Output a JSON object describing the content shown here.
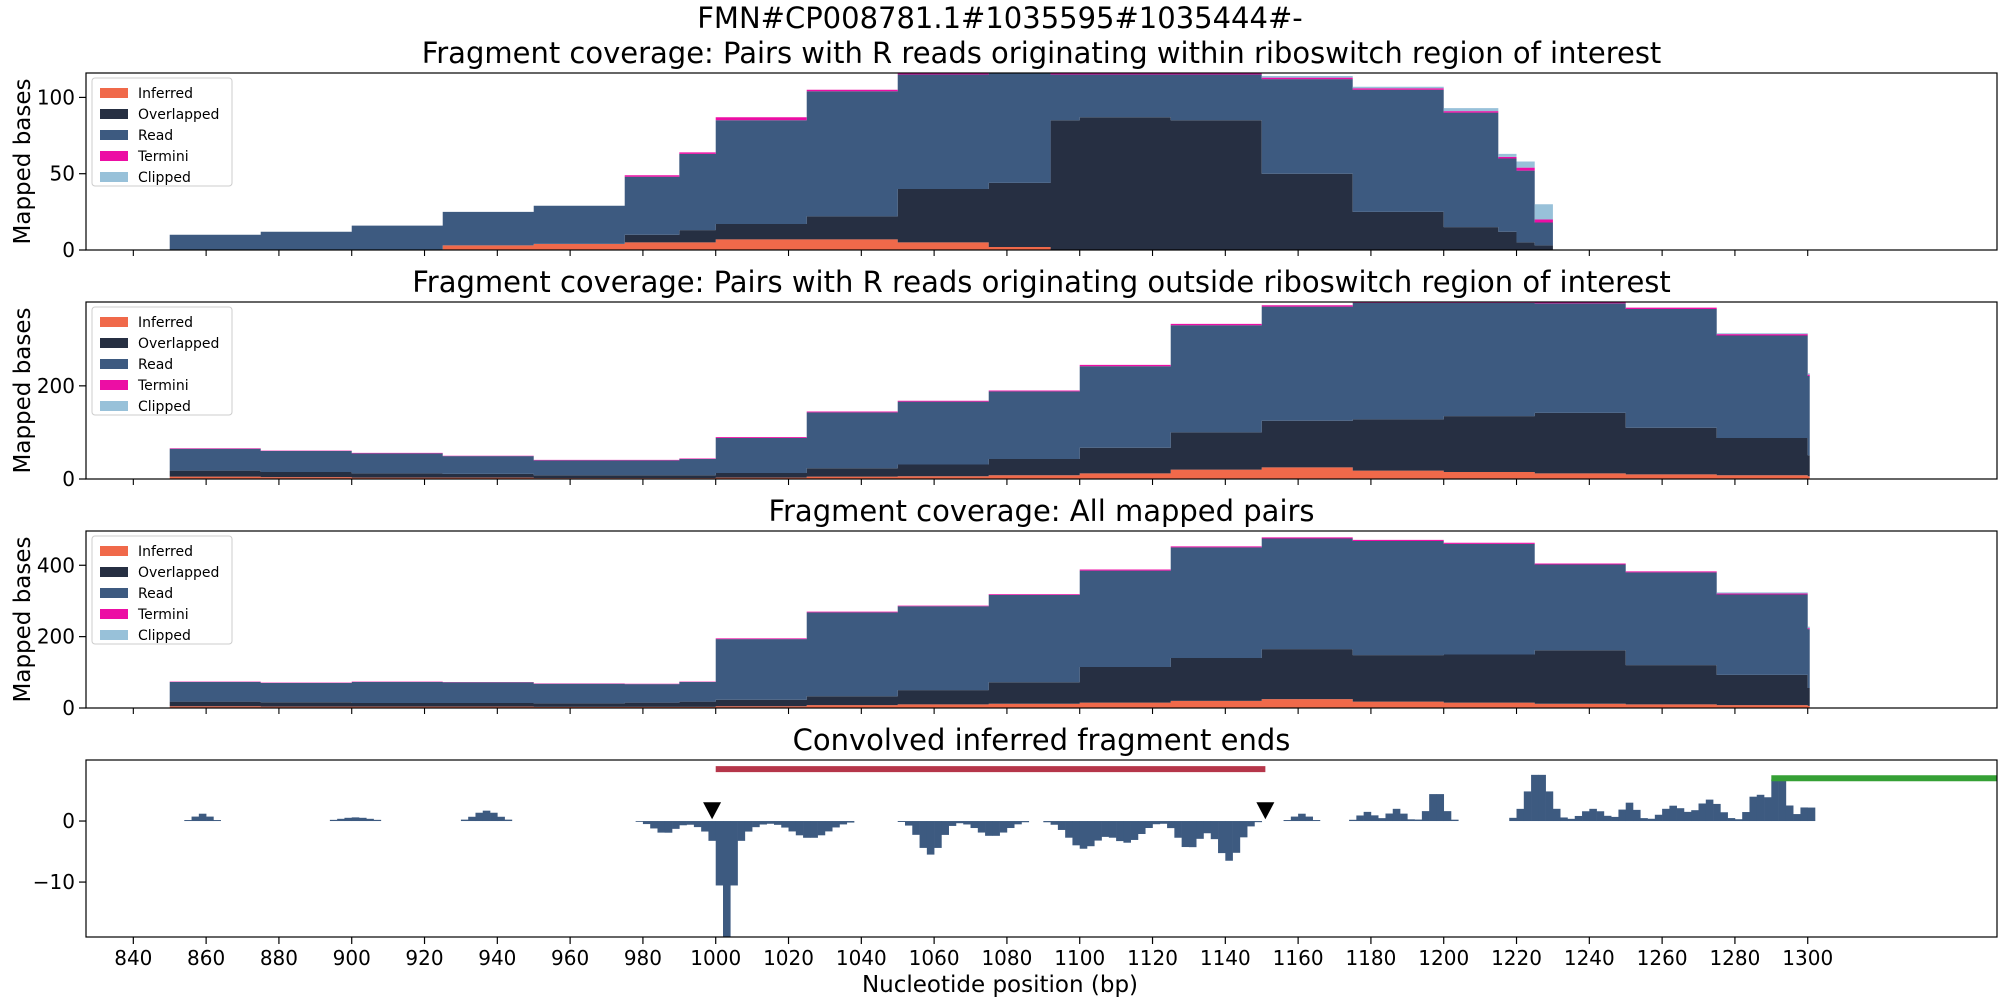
{
  "figure": {
    "title": "FMN#CP008781.1#1035595#1035444#-",
    "xlabel": "Nucleotide position (bp)"
  },
  "colors": {
    "inferred": "#f0694a",
    "overlapped": "#262f42",
    "read": "#3d5a80",
    "termini": "#ec0ea4",
    "clipped": "#98c1d9",
    "region_bar": "#b5364a",
    "green_bar": "#35a035",
    "marker": "#000000"
  },
  "legend": [
    "Inferred",
    "Overlapped",
    "Read",
    "Termini",
    "Clipped"
  ],
  "chart_data": [
    {
      "type": "area",
      "title": "Fragment coverage: Pairs with R reads originating within riboswitch region of interest",
      "xlabel": "",
      "ylabel": "Mapped bases",
      "xlim": [
        827,
        1352
      ],
      "ylim": [
        0,
        116
      ],
      "yticks": [
        0,
        50,
        100
      ],
      "legend_position": "upper-left",
      "stacked": true,
      "x": [
        850,
        875,
        900,
        925,
        950,
        975,
        990,
        1000,
        1025,
        1050,
        1075,
        1092,
        1100,
        1125,
        1150,
        1175,
        1200,
        1215,
        1220,
        1225,
        1230
      ],
      "series": [
        {
          "name": "Inferred",
          "values": [
            0,
            0,
            0,
            3,
            4,
            5,
            5,
            7,
            7,
            5,
            2,
            0,
            0,
            0,
            0,
            0,
            0,
            0,
            0,
            0,
            0
          ]
        },
        {
          "name": "Overlapped",
          "values": [
            0,
            0,
            0,
            0,
            0,
            5,
            8,
            10,
            15,
            35,
            42,
            85,
            87,
            85,
            50,
            25,
            15,
            12,
            5,
            3,
            0
          ]
        },
        {
          "name": "Read",
          "values": [
            10,
            12,
            16,
            22,
            25,
            38,
            50,
            68,
            82,
            75,
            74,
            30,
            28,
            30,
            62,
            80,
            75,
            48,
            47,
            15,
            0
          ]
        },
        {
          "name": "Termini",
          "values": [
            0,
            0,
            0,
            0,
            0,
            1,
            1,
            2,
            1,
            1,
            1,
            1,
            1,
            1,
            1,
            1,
            1,
            1,
            2,
            2,
            0
          ]
        },
        {
          "name": "Clipped",
          "values": [
            0,
            0,
            0,
            0,
            0,
            0,
            0,
            0,
            0,
            0,
            0,
            0,
            0,
            0,
            1,
            1,
            2,
            2,
            4,
            10,
            0
          ]
        }
      ]
    },
    {
      "type": "area",
      "title": "Fragment coverage: Pairs with R reads originating outside riboswitch region of interest",
      "xlabel": "",
      "ylabel": "Mapped bases",
      "xlim": [
        827,
        1352
      ],
      "ylim": [
        0,
        380
      ],
      "yticks": [
        0,
        200
      ],
      "legend_position": "upper-left",
      "stacked": true,
      "x": [
        850,
        875,
        900,
        925,
        950,
        975,
        990,
        1000,
        1025,
        1050,
        1075,
        1100,
        1125,
        1150,
        1175,
        1200,
        1225,
        1250,
        1275,
        1300
      ],
      "series": [
        {
          "name": "Inferred",
          "values": [
            5,
            4,
            3,
            3,
            2,
            2,
            2,
            3,
            5,
            6,
            8,
            12,
            20,
            25,
            18,
            15,
            12,
            10,
            8,
            6
          ]
        },
        {
          "name": "Overlapped",
          "values": [
            13,
            11,
            9,
            8,
            6,
            6,
            6,
            10,
            18,
            25,
            35,
            55,
            80,
            100,
            110,
            120,
            130,
            100,
            80,
            45
          ]
        },
        {
          "name": "Read",
          "values": [
            47,
            45,
            43,
            38,
            32,
            32,
            35,
            75,
            120,
            135,
            145,
            175,
            230,
            245,
            250,
            243,
            235,
            255,
            220,
            170
          ]
        },
        {
          "name": "Termini",
          "values": [
            1,
            1,
            1,
            1,
            1,
            1,
            1,
            2,
            2,
            2,
            2,
            3,
            3,
            3,
            3,
            3,
            3,
            3,
            3,
            3
          ]
        },
        {
          "name": "Clipped",
          "values": [
            0,
            0,
            0,
            0,
            0,
            0,
            0,
            0,
            0,
            0,
            0,
            0,
            0,
            0,
            0,
            0,
            0,
            0,
            2,
            3
          ]
        }
      ]
    },
    {
      "type": "area",
      "title": "Fragment coverage: All mapped pairs",
      "xlabel": "",
      "ylabel": "Mapped bases",
      "xlim": [
        827,
        1352
      ],
      "ylim": [
        0,
        496
      ],
      "yticks": [
        0,
        200,
        400
      ],
      "legend_position": "upper-left",
      "stacked": true,
      "x": [
        850,
        875,
        900,
        925,
        950,
        975,
        990,
        1000,
        1025,
        1050,
        1075,
        1100,
        1125,
        1150,
        1175,
        1200,
        1225,
        1250,
        1275,
        1300
      ],
      "series": [
        {
          "name": "Inferred",
          "values": [
            5,
            4,
            4,
            4,
            3,
            3,
            3,
            5,
            8,
            10,
            12,
            15,
            20,
            25,
            18,
            15,
            12,
            10,
            8,
            6
          ]
        },
        {
          "name": "Overlapped",
          "values": [
            13,
            12,
            10,
            10,
            10,
            12,
            15,
            18,
            25,
            40,
            60,
            100,
            120,
            140,
            130,
            135,
            150,
            110,
            85,
            50
          ]
        },
        {
          "name": "Read",
          "values": [
            55,
            54,
            59,
            58,
            55,
            52,
            55,
            170,
            235,
            235,
            245,
            270,
            310,
            310,
            320,
            310,
            240,
            260,
            225,
            165
          ]
        },
        {
          "name": "Termini",
          "values": [
            1,
            1,
            1,
            1,
            1,
            1,
            1,
            2,
            2,
            2,
            2,
            3,
            3,
            3,
            3,
            3,
            3,
            3,
            3,
            3
          ]
        },
        {
          "name": "Clipped",
          "values": [
            0,
            0,
            0,
            0,
            0,
            0,
            0,
            0,
            0,
            0,
            0,
            0,
            0,
            0,
            0,
            0,
            0,
            0,
            3,
            4
          ]
        }
      ]
    },
    {
      "type": "bar",
      "title": "Convolved inferred fragment ends",
      "xlabel": "Nucleotide position (bp)",
      "ylabel": "",
      "xlim": [
        827,
        1352
      ],
      "ylim": [
        -19,
        10
      ],
      "yticks": [
        -10,
        0
      ],
      "xticks": [
        840,
        860,
        880,
        900,
        920,
        940,
        960,
        980,
        1000,
        1020,
        1040,
        1060,
        1080,
        1100,
        1120,
        1140,
        1160,
        1180,
        1200,
        1220,
        1240,
        1260,
        1280,
        1300
      ],
      "region_bar": {
        "start": 1000,
        "end": 1151,
        "y": 8.5
      },
      "green_bar": {
        "start": 1290,
        "end": 1352,
        "y": 7
      },
      "markers": [
        {
          "x": 999,
          "y": 1.6
        },
        {
          "x": 1151,
          "y": 1.6
        }
      ],
      "peaks": [
        {
          "x": 858,
          "amp": 1.2,
          "w": 2
        },
        {
          "x": 900,
          "amp": 0.6,
          "w": 4
        },
        {
          "x": 936,
          "amp": 1.7,
          "w": 3
        },
        {
          "x": 985,
          "amp": -2.0,
          "w": 3
        },
        {
          "x": 1002,
          "amp": -16,
          "w": 1.6
        },
        {
          "x": 1002,
          "amp": -3.5,
          "w": 5
        },
        {
          "x": 1025,
          "amp": -2.8,
          "w": 5
        },
        {
          "x": 1058,
          "amp": -5.5,
          "w": 3
        },
        {
          "x": 1075,
          "amp": -2.5,
          "w": 4
        },
        {
          "x": 1100,
          "amp": -4.5,
          "w": 4
        },
        {
          "x": 1112,
          "amp": -3.5,
          "w": 4
        },
        {
          "x": 1129,
          "amp": -4.5,
          "w": 3
        },
        {
          "x": 1140,
          "amp": -6.5,
          "w": 3
        },
        {
          "x": 1160,
          "amp": 1.2,
          "w": 2
        },
        {
          "x": 1178,
          "amp": 1.5,
          "w": 2
        },
        {
          "x": 1186,
          "amp": 2.0,
          "w": 2
        },
        {
          "x": 1197,
          "amp": 5.0,
          "w": 2
        },
        {
          "x": 1225,
          "amp": 8.0,
          "w": 3
        },
        {
          "x": 1240,
          "amp": 2.0,
          "w": 3
        },
        {
          "x": 1250,
          "amp": 3.0,
          "w": 2
        },
        {
          "x": 1262,
          "amp": 2.5,
          "w": 3
        },
        {
          "x": 1272,
          "amp": 3.5,
          "w": 3
        },
        {
          "x": 1285,
          "amp": 4.5,
          "w": 2
        },
        {
          "x": 1291,
          "amp": 7.5,
          "w": 2
        },
        {
          "x": 1299,
          "amp": 2.5,
          "w": 2
        }
      ]
    }
  ]
}
